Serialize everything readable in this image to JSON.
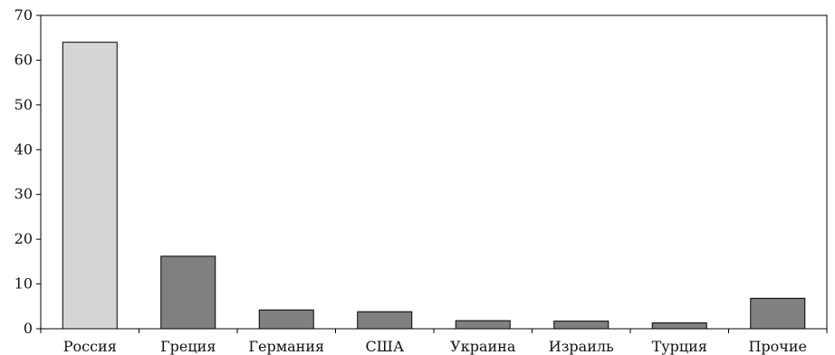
{
  "chart_data": {
    "type": "bar",
    "title": "",
    "xlabel": "",
    "ylabel": "",
    "categories": [
      "Россия",
      "Греция",
      "Германия",
      "США",
      "Украина",
      "Израиль",
      "Турция",
      "Прочие"
    ],
    "values": [
      64,
      16.2,
      4.2,
      3.8,
      1.8,
      1.7,
      1.3,
      6.8
    ],
    "ylim": [
      0,
      70
    ],
    "yticks": [
      0,
      10,
      20,
      30,
      40,
      50,
      60,
      70
    ],
    "grid": false,
    "legend": "none",
    "colors": {
      "highlight": "#d4d5d6",
      "default": "#808080",
      "stroke": "#000000"
    },
    "highlight_index": 0
  }
}
